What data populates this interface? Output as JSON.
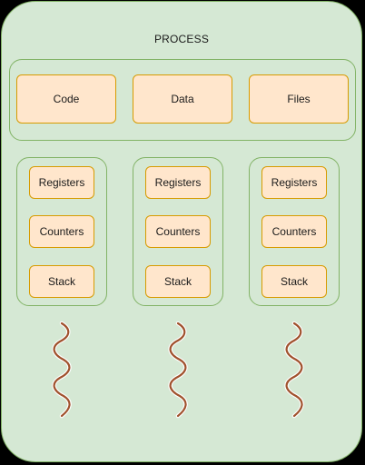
{
  "diagram": {
    "title": "PROCESS",
    "shared": {
      "code": "Code",
      "data": "Data",
      "files": "Files"
    },
    "threads": [
      {
        "registers": "Registers",
        "counters": "Counters",
        "stack": "Stack"
      },
      {
        "registers": "Registers",
        "counters": "Counters",
        "stack": "Stack"
      },
      {
        "registers": "Registers",
        "counters": "Counters",
        "stack": "Stack"
      }
    ],
    "colors": {
      "process_fill": "#d5e8d4",
      "process_stroke": "#82b366",
      "box_fill": "#ffe6cc",
      "box_stroke": "#d79b00",
      "thread_line": "#a0522d"
    }
  }
}
